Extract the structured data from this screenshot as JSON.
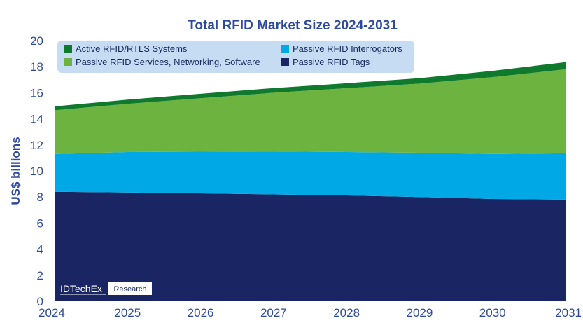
{
  "chart_data": {
    "type": "area",
    "stacked": true,
    "title": "Total RFID Market Size 2024-2031",
    "xlabel": "",
    "ylabel": "US$ billions",
    "x": [
      "2024",
      "2025",
      "2026",
      "2027",
      "2028",
      "2029",
      "2030",
      "2031"
    ],
    "ylim": [
      0,
      20
    ],
    "yticks": [
      "0",
      "2",
      "4",
      "6",
      "8",
      "10",
      "12",
      "14",
      "16",
      "18",
      "20"
    ],
    "grid": false,
    "legend_position": "top",
    "series": [
      {
        "name": "Passive RFID Tags",
        "color": "#1a2663",
        "values": [
          8.4,
          8.35,
          8.28,
          8.2,
          8.12,
          8.0,
          7.85,
          7.8
        ]
      },
      {
        "name": "Passive RFID Interrogators",
        "color": "#00a9e6",
        "values": [
          2.9,
          3.1,
          3.2,
          3.3,
          3.33,
          3.4,
          3.45,
          3.55
        ]
      },
      {
        "name": "Passive RFID Services, Networking, Software",
        "color": "#6db33f",
        "values": [
          3.35,
          3.7,
          4.1,
          4.5,
          4.9,
          5.3,
          5.9,
          6.45
        ]
      },
      {
        "name": "Active RFID/RTLS Systems",
        "color": "#0f7a2e",
        "values": [
          0.3,
          0.32,
          0.34,
          0.36,
          0.38,
          0.42,
          0.48,
          0.55
        ]
      }
    ],
    "legend_order": [
      "Active RFID/RTLS Systems",
      "Passive RFID Interrogators",
      "Passive RFID Services, Networking, Software",
      "Passive RFID Tags"
    ]
  },
  "branding": {
    "company": "IDTechEx",
    "tag": "Research"
  }
}
